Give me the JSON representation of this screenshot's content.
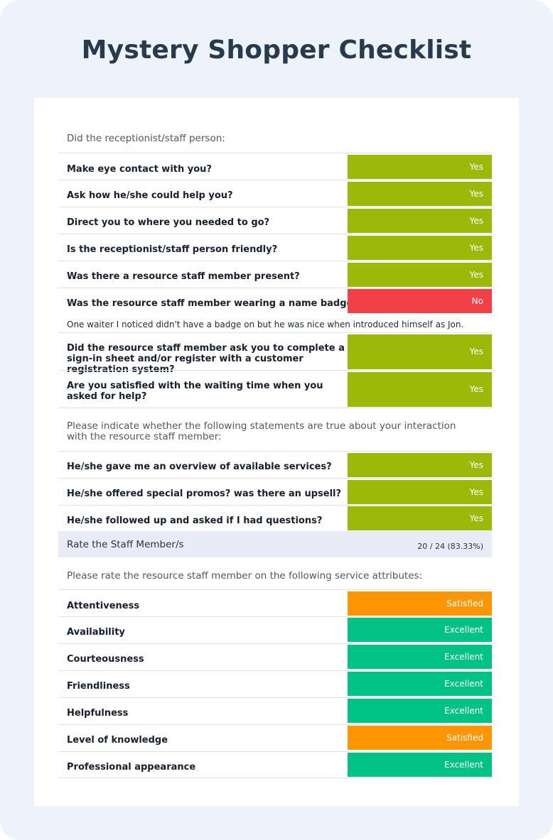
{
  "title": "Mystery Shopper Checklist",
  "section1": {
    "intro": "Did the receptionist/staff person:",
    "items": [
      {
        "question": "Make eye contact with you?",
        "answer": "Yes"
      },
      {
        "question": "Ask how he/she could help you?",
        "answer": "Yes"
      },
      {
        "question": "Direct you to where you needed to go?",
        "answer": "Yes"
      },
      {
        "question": "Is the receptionist/staff person friendly?",
        "answer": "Yes"
      },
      {
        "question": "Was there a resource staff member present?",
        "answer": "Yes"
      },
      {
        "question": "Was the resource staff member wearing a name badge?",
        "answer": "No"
      },
      {
        "question": "Did the resource staff member ask you to complete a sign-in sheet and/or register with a customer registration system?",
        "answer": "Yes"
      },
      {
        "question": "Are you satisfied with the waiting time when you asked for help?",
        "answer": "Yes"
      }
    ],
    "comment": "One waiter I noticed didn't have a badge on but he was nice when introduced himself as Jon."
  },
  "section2": {
    "intro": "Please indicate whether the following statements are true about your interaction with the resource staff member:",
    "items": [
      {
        "question": "He/she gave me an overview of available services?",
        "answer": "Yes"
      },
      {
        "question": "He/she offered special promos? was there an upsell?",
        "answer": "Yes"
      },
      {
        "question": "He/she followed up and asked if I had questions?",
        "answer": "Yes"
      }
    ],
    "score_label": "Rate the Staff Member/s",
    "score_value": "20 / 24 (83.33%)"
  },
  "section3": {
    "intro": "Please rate the resource  staff member on the following service attributes:",
    "items": [
      {
        "question": "Attentiveness",
        "answer": "Satisfied"
      },
      {
        "question": "Availability",
        "answer": "Excellent"
      },
      {
        "question": "Courteousness",
        "answer": "Excellent"
      },
      {
        "question": "Friendliness",
        "answer": "Excellent"
      },
      {
        "question": "Helpfulness",
        "answer": "Excellent"
      },
      {
        "question": "Level of knowledge",
        "answer": "Satisfied"
      },
      {
        "question": "Professional appearance",
        "answer": "Excellent"
      }
    ]
  },
  "colors": {
    "yes": "#9cb808",
    "no": "#f24048",
    "satisfied": "#fd9602",
    "excellent": "#00c285"
  }
}
